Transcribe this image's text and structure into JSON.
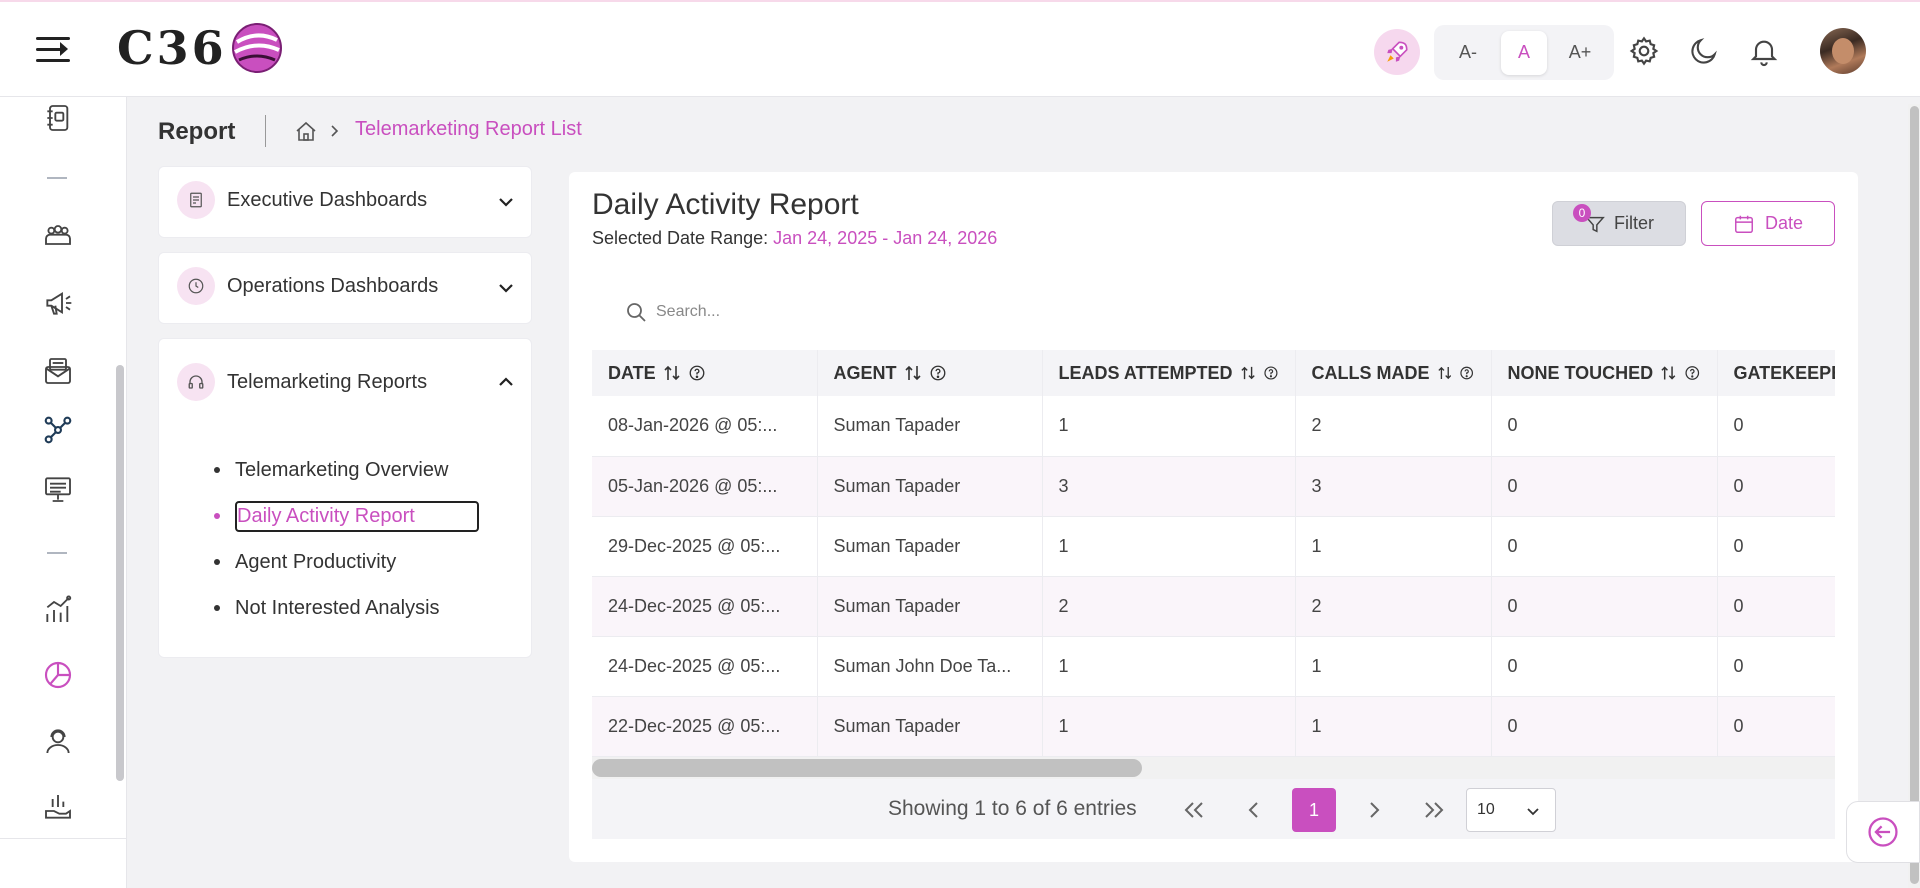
{
  "header": {
    "logo_text": "C36",
    "font_controls": [
      "A-",
      "A",
      "A+"
    ],
    "icons": [
      "rocket-icon",
      "gear-icon",
      "moon-icon",
      "bell-icon"
    ]
  },
  "breadcrumb": {
    "title": "Report",
    "current": "Telemarketing Report List"
  },
  "menu": {
    "executive": "Executive Dashboards",
    "operations": "Operations Dashboards",
    "telemarketing": "Telemarketing Reports",
    "sub_items": [
      "Telemarketing Overview",
      "Daily Activity Report",
      "Agent Productivity",
      "Not Interested Analysis"
    ]
  },
  "report": {
    "title": "Daily Activity Report",
    "range_label": "Selected Date Range:",
    "range_value": "Jan 24, 2025 - Jan 24, 2026",
    "filter_label": "Filter",
    "filter_count": "0",
    "date_label": "Date",
    "search_placeholder": "Search..."
  },
  "table": {
    "columns": [
      "DATE",
      "AGENT",
      "LEADS ATTEMPTED",
      "CALLS MADE",
      "NONE TOUCHED",
      "GATEKEEPE"
    ],
    "rows": [
      [
        "08-Jan-2026 @ 05:...",
        "Suman Tapader",
        "1",
        "2",
        "0",
        "0"
      ],
      [
        "05-Jan-2026 @ 05:...",
        "Suman Tapader",
        "3",
        "3",
        "0",
        "0"
      ],
      [
        "29-Dec-2025 @ 05:...",
        "Suman Tapader",
        "1",
        "1",
        "0",
        "0"
      ],
      [
        "24-Dec-2025 @ 05:...",
        "Suman Tapader",
        "2",
        "2",
        "0",
        "0"
      ],
      [
        "24-Dec-2025 @ 05:...",
        "Suman John Doe Ta...",
        "1",
        "1",
        "0",
        "0"
      ],
      [
        "22-Dec-2025 @ 05:...",
        "Suman Tapader",
        "1",
        "1",
        "0",
        "0"
      ]
    ]
  },
  "pagination": {
    "summary": "Showing 1 to 6 of 6 entries",
    "current_page": "1",
    "per_page": "10"
  },
  "colors": {
    "accent": "#c94fbf"
  }
}
